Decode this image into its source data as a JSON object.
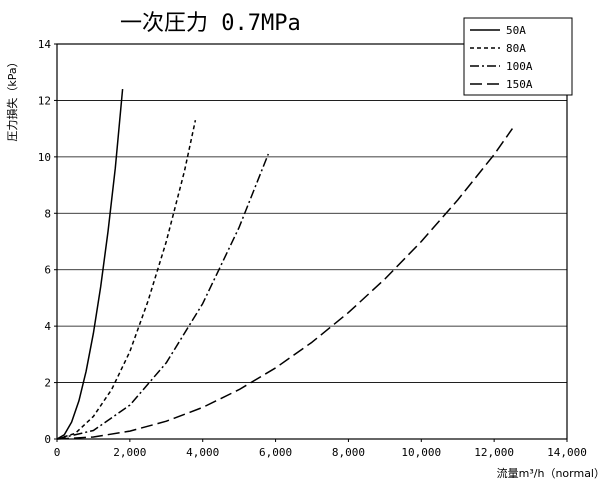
{
  "chart_data": {
    "type": "line",
    "title": "一次圧力  0.7MPa",
    "xlabel": "流量m³/h（normal）",
    "ylabel": "圧力損失（kPa）",
    "xlim": [
      0,
      14000
    ],
    "ylim": [
      0,
      14
    ],
    "xticks": [
      0,
      2000,
      4000,
      6000,
      8000,
      10000,
      12000,
      14000
    ],
    "xtick_labels": [
      "0",
      "2,000",
      "4,000",
      "6,000",
      "8,000",
      "10,000",
      "12,000",
      "14,000"
    ],
    "yticks": [
      0,
      2,
      4,
      6,
      8,
      10,
      12,
      14
    ],
    "ytick_labels": [
      "0",
      "2",
      "4",
      "6",
      "8",
      "10",
      "12",
      "14"
    ],
    "grid": "horizontal",
    "legend_position": "top-right",
    "series": [
      {
        "name": "50A",
        "dash": "solid",
        "x": [
          0,
          200,
          400,
          600,
          800,
          1000,
          1200,
          1400,
          1600,
          1800
        ],
        "y": [
          0,
          0.15,
          0.6,
          1.35,
          2.4,
          3.75,
          5.4,
          7.35,
          9.6,
          12.4
        ]
      },
      {
        "name": "80A",
        "dash": "dotted",
        "x": [
          0,
          500,
          1000,
          1500,
          2000,
          2500,
          3000,
          3500,
          3800
        ],
        "y": [
          0,
          0.2,
          0.8,
          1.75,
          3.1,
          4.9,
          7.0,
          9.5,
          11.3
        ]
      },
      {
        "name": "100A",
        "dash": "dashdot",
        "x": [
          0,
          1000,
          2000,
          3000,
          4000,
          5000,
          5800
        ],
        "y": [
          0,
          0.3,
          1.2,
          2.7,
          4.8,
          7.5,
          10.1
        ]
      },
      {
        "name": "150A",
        "dash": "dashed",
        "x": [
          0,
          1000,
          2000,
          3000,
          4000,
          5000,
          6000,
          7000,
          8000,
          9000,
          10000,
          11000,
          12000,
          12500
        ],
        "y": [
          0,
          0.07,
          0.28,
          0.63,
          1.12,
          1.75,
          2.52,
          3.43,
          4.48,
          5.67,
          7.0,
          8.47,
          10.08,
          11.0
        ]
      }
    ]
  }
}
